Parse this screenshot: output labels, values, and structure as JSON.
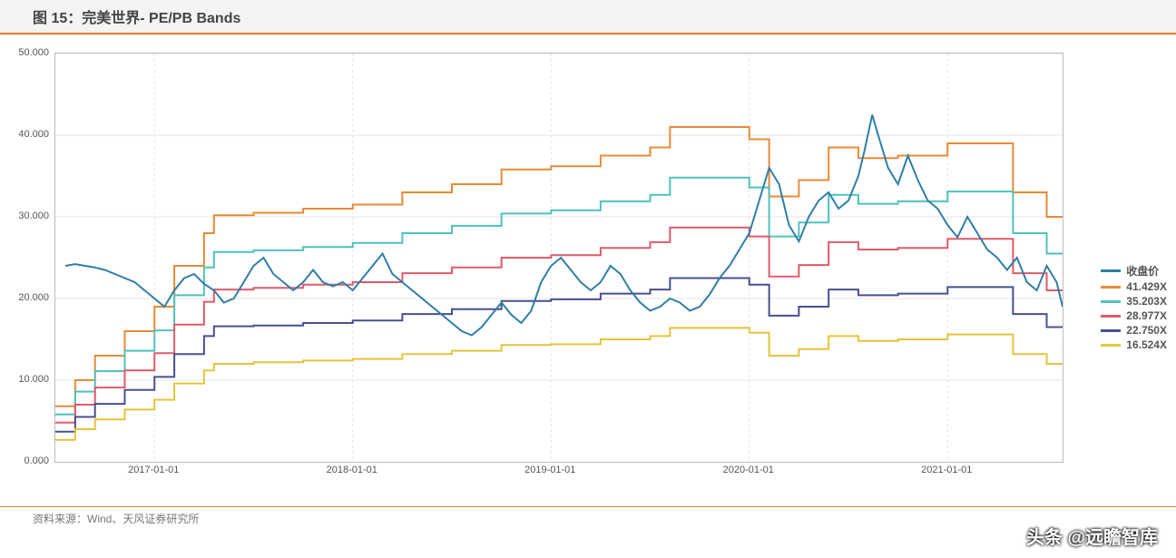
{
  "title": "图 15：完美世界- PE/PB Bands",
  "source": "资料来源：Wind、天风证券研究所",
  "watermark": "头条 @远瞻智库",
  "chart": {
    "type": "line",
    "background_color": "#ffffff",
    "grid_color": "#e5e5e5",
    "axis_color": "#bbbbbb",
    "title_color": "#444444",
    "title_fontsize": 16,
    "label_fontsize": 11,
    "legend_fontsize": 12,
    "accent_rule_color": "#e07b2f",
    "ylim": [
      0,
      50
    ],
    "ytick_step": 10,
    "yticks": [
      "0.000",
      "10.000",
      "20.000",
      "30.000",
      "40.000",
      "50.000"
    ],
    "x_range": [
      2016.5,
      2021.58
    ],
    "xticks": [
      {
        "pos": 2017.0,
        "label": "2017-01-01"
      },
      {
        "pos": 2018.0,
        "label": "2018-01-01"
      },
      {
        "pos": 2019.0,
        "label": "2019-01-01"
      },
      {
        "pos": 2020.0,
        "label": "2020-01-01"
      },
      {
        "pos": 2021.0,
        "label": "2021-01-01"
      }
    ],
    "legend_labels": [
      "收盘价",
      "41.429X",
      "35.203X",
      "28.977X",
      "22.750X",
      "16.524X"
    ],
    "series_colors": [
      "#2f7ea6",
      "#e88a36",
      "#4fc2bc",
      "#e05a6b",
      "#4a4f8f",
      "#e4c43a"
    ],
    "band_steps": {
      "x": [
        2016.5,
        2016.6,
        2016.7,
        2016.85,
        2017.0,
        2017.1,
        2017.25,
        2017.3,
        2017.5,
        2017.75,
        2018.0,
        2018.25,
        2018.5,
        2018.75,
        2019.0,
        2019.25,
        2019.5,
        2019.6,
        2019.75,
        2020.0,
        2020.1,
        2020.25,
        2020.4,
        2020.55,
        2020.75,
        2021.0,
        2021.25,
        2021.33,
        2021.5,
        2021.58
      ],
      "b41": [
        6.8,
        10.0,
        13.0,
        16.0,
        19.0,
        24.0,
        28.0,
        30.2,
        30.5,
        31.0,
        31.5,
        33.0,
        34.0,
        35.8,
        36.2,
        37.5,
        38.5,
        41.0,
        41.0,
        39.5,
        32.5,
        34.5,
        38.5,
        37.2,
        37.5,
        39.0,
        39.0,
        33.0,
        30.0,
        30.0
      ],
      "b35": [
        5.8,
        8.6,
        11.1,
        13.6,
        16.1,
        20.4,
        23.8,
        25.7,
        25.9,
        26.3,
        26.8,
        28.0,
        28.9,
        30.4,
        30.8,
        31.9,
        32.7,
        34.8,
        34.8,
        33.6,
        27.6,
        29.3,
        32.7,
        31.6,
        31.9,
        33.1,
        33.1,
        28.0,
        25.5,
        25.5
      ],
      "b29": [
        4.8,
        7.0,
        9.1,
        11.2,
        13.3,
        16.8,
        19.6,
        21.1,
        21.3,
        21.7,
        22.0,
        23.1,
        23.8,
        25.0,
        25.3,
        26.2,
        26.9,
        28.7,
        28.7,
        27.6,
        22.7,
        24.1,
        26.9,
        26.0,
        26.2,
        27.3,
        27.3,
        23.1,
        21.0,
        21.0
      ],
      "b22": [
        3.7,
        5.5,
        7.1,
        8.8,
        10.4,
        13.2,
        15.4,
        16.6,
        16.7,
        17.0,
        17.3,
        18.1,
        18.7,
        19.7,
        19.9,
        20.6,
        21.1,
        22.5,
        22.5,
        21.7,
        17.9,
        19.0,
        21.1,
        20.4,
        20.6,
        21.4,
        21.4,
        18.1,
        16.5,
        16.5
      ],
      "b16": [
        2.7,
        4.0,
        5.2,
        6.4,
        7.6,
        9.6,
        11.2,
        12.0,
        12.2,
        12.4,
        12.6,
        13.2,
        13.6,
        14.3,
        14.4,
        15.0,
        15.4,
        16.4,
        16.4,
        15.8,
        13.0,
        13.8,
        15.4,
        14.8,
        15.0,
        15.6,
        15.6,
        13.2,
        12.0,
        12.0
      ]
    },
    "price": {
      "x": [
        2016.55,
        2016.6,
        2016.65,
        2016.7,
        2016.75,
        2016.8,
        2016.85,
        2016.9,
        2016.95,
        2017.0,
        2017.05,
        2017.1,
        2017.15,
        2017.2,
        2017.25,
        2017.3,
        2017.35,
        2017.4,
        2017.45,
        2017.5,
        2017.55,
        2017.6,
        2017.65,
        2017.7,
        2017.75,
        2017.8,
        2017.85,
        2017.9,
        2017.95,
        2018.0,
        2018.05,
        2018.1,
        2018.15,
        2018.2,
        2018.25,
        2018.3,
        2018.35,
        2018.4,
        2018.45,
        2018.5,
        2018.55,
        2018.6,
        2018.65,
        2018.7,
        2018.75,
        2018.8,
        2018.85,
        2018.9,
        2018.95,
        2019.0,
        2019.05,
        2019.1,
        2019.15,
        2019.2,
        2019.25,
        2019.3,
        2019.35,
        2019.4,
        2019.45,
        2019.5,
        2019.55,
        2019.6,
        2019.65,
        2019.7,
        2019.75,
        2019.8,
        2019.85,
        2019.9,
        2019.95,
        2020.0,
        2020.05,
        2020.1,
        2020.15,
        2020.2,
        2020.25,
        2020.3,
        2020.35,
        2020.4,
        2020.45,
        2020.5,
        2020.55,
        2020.58,
        2020.62,
        2020.65,
        2020.7,
        2020.75,
        2020.8,
        2020.85,
        2020.9,
        2020.95,
        2021.0,
        2021.05,
        2021.1,
        2021.15,
        2021.2,
        2021.25,
        2021.3,
        2021.35,
        2021.4,
        2021.45,
        2021.5,
        2021.55,
        2021.58
      ],
      "y": [
        24.0,
        24.2,
        24.0,
        23.8,
        23.5,
        23.0,
        22.5,
        22.0,
        21.0,
        20.0,
        19.0,
        21.0,
        22.5,
        23.0,
        21.8,
        21.0,
        19.5,
        20.0,
        22.0,
        24.0,
        25.0,
        23.0,
        22.0,
        21.0,
        22.0,
        23.5,
        22.0,
        21.5,
        22.0,
        21.0,
        22.5,
        24.0,
        25.5,
        23.0,
        22.0,
        21.0,
        20.0,
        19.0,
        18.0,
        17.0,
        16.0,
        15.5,
        16.5,
        18.0,
        19.5,
        18.0,
        17.0,
        18.5,
        22.0,
        24.0,
        25.0,
        23.5,
        22.0,
        21.0,
        22.0,
        24.0,
        23.0,
        21.0,
        19.5,
        18.5,
        19.0,
        20.0,
        19.5,
        18.5,
        19.0,
        20.5,
        22.5,
        24.0,
        26.0,
        28.0,
        32.0,
        36.0,
        34.0,
        29.0,
        27.0,
        30.0,
        32.0,
        33.0,
        31.0,
        32.0,
        35.0,
        38.0,
        42.5,
        40.0,
        36.0,
        34.0,
        37.5,
        34.5,
        32.0,
        31.0,
        29.0,
        27.5,
        30.0,
        28.0,
        26.0,
        25.0,
        23.5,
        25.0,
        22.0,
        21.0,
        24.0,
        22.0,
        19.0
      ]
    }
  }
}
